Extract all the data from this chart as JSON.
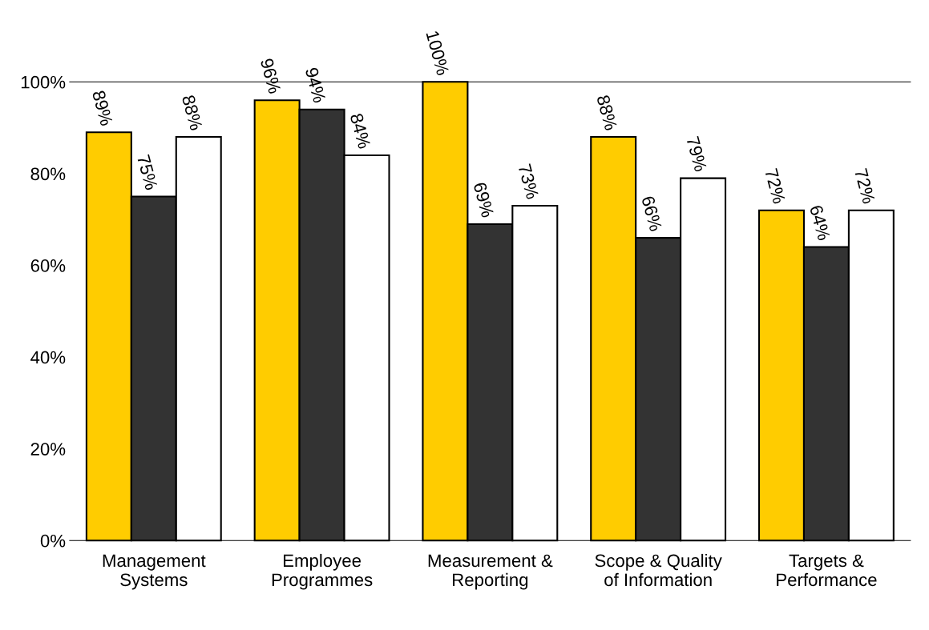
{
  "chart_data": {
    "type": "bar",
    "categories": [
      "Management\nSystems",
      "Employee\nProgrammes",
      "Measurement &\nReporting",
      "Scope & Quality\nof Information",
      "Targets &\nPerformance"
    ],
    "series": [
      {
        "color": "#ffcc00",
        "values": [
          89,
          96,
          100,
          88,
          72
        ],
        "value_labels": [
          "89%",
          "96%",
          "100%",
          "88%",
          "72%"
        ]
      },
      {
        "color": "#333333",
        "values": [
          75,
          94,
          69,
          66,
          64
        ],
        "value_labels": [
          "75%",
          "94%",
          "69%",
          "66%",
          "64%"
        ]
      },
      {
        "color": "#ffffff",
        "values": [
          88,
          84,
          73,
          79,
          72
        ],
        "value_labels": [
          "88%",
          "84%",
          "73%",
          "79%",
          "72%"
        ]
      }
    ],
    "ylim": [
      0,
      100
    ],
    "yticks": [
      {
        "value": 0,
        "label": "0%"
      },
      {
        "value": 20,
        "label": "20%"
      },
      {
        "value": 40,
        "label": "40%"
      },
      {
        "value": 60,
        "label": "60%"
      },
      {
        "value": 80,
        "label": "80%"
      },
      {
        "value": 100,
        "label": "100%"
      }
    ],
    "grid": false
  }
}
